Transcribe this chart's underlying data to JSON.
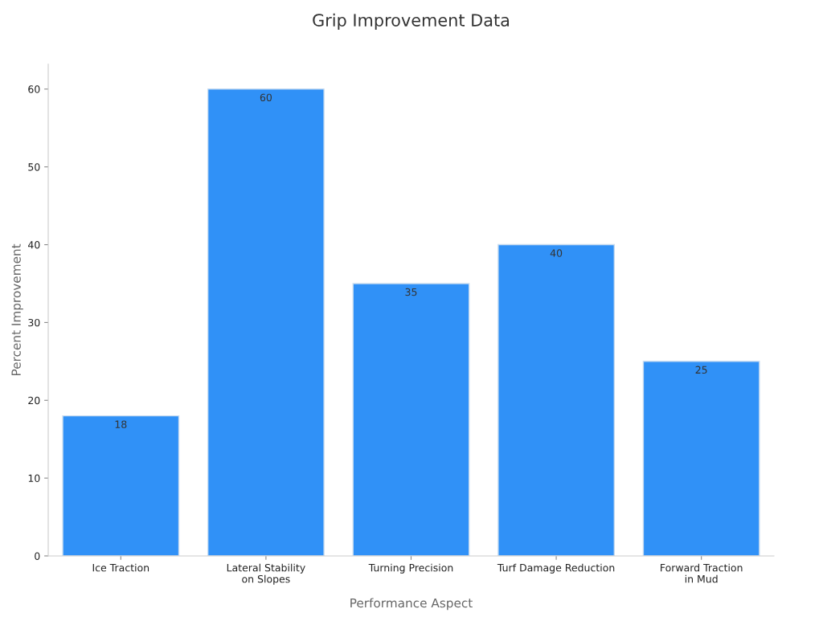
{
  "chart_data": {
    "type": "bar",
    "title": "Grip Improvement Data",
    "xlabel": "Performance Aspect",
    "ylabel": "Percent Improvement",
    "categories": [
      "Ice Traction",
      "Lateral Stability\non Slopes",
      "Turning Precision",
      "Turf Damage Reduction",
      "Forward Traction\nin Mud"
    ],
    "values": [
      18,
      60,
      35,
      40,
      25
    ],
    "color": "#3091f7",
    "ylim": [
      0,
      63.2
    ],
    "yticks": [
      0,
      10,
      20,
      30,
      40,
      50,
      60
    ],
    "grid": false,
    "data_labels": true
  }
}
